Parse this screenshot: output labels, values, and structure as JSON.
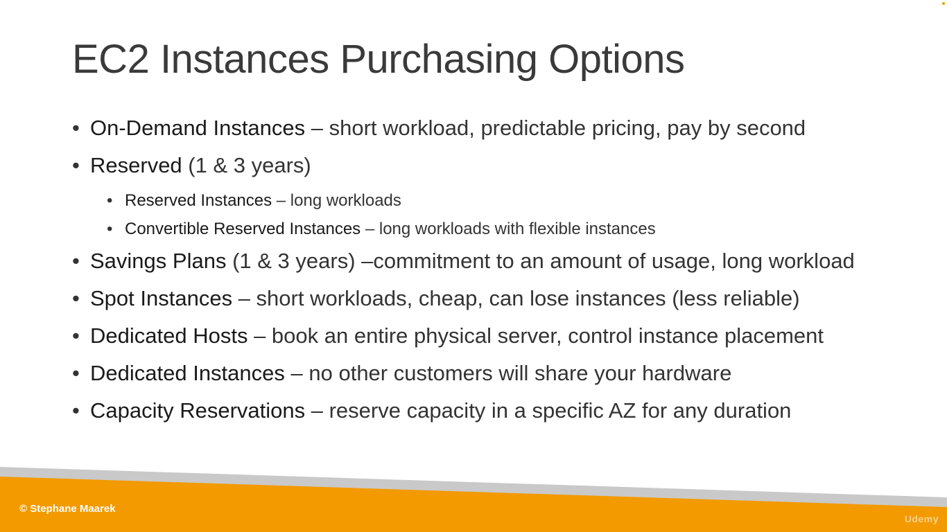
{
  "slide": {
    "title": "EC2 Instances Purchasing Options",
    "bullets": [
      {
        "term": "On-Demand Instances",
        "desc": " – short workload, predictable pricing, pay by second"
      },
      {
        "term": "Reserved",
        "desc": " (1 & 3 years)",
        "sub": [
          {
            "term": "Reserved Instances",
            "desc": " – long workloads"
          },
          {
            "term": "Convertible Reserved Instances",
            "desc": " – long workloads with flexible instances"
          }
        ]
      },
      {
        "term": "Savings Plans",
        "desc": " (1 & 3 years) –commitment to an amount of usage, long workload"
      },
      {
        "term": "Spot Instances",
        "desc": " – short workloads, cheap, can lose instances (less reliable)"
      },
      {
        "term": "Dedicated Hosts",
        "desc": " – book an entire physical server, control instance placement"
      },
      {
        "term": "Dedicated Instances",
        "desc": " – no other customers will share your hardware"
      },
      {
        "term": "Capacity Reservations",
        "desc": " – reserve capacity in a specific AZ for any duration"
      }
    ]
  },
  "footer": {
    "copyright": "© Stephane Maarek",
    "watermark": "Udemy"
  },
  "colors": {
    "accent_orange": "#f29a00",
    "band_gray": "#c9c9c9"
  },
  "icons": {
    "bullet": "bullet-dot"
  }
}
